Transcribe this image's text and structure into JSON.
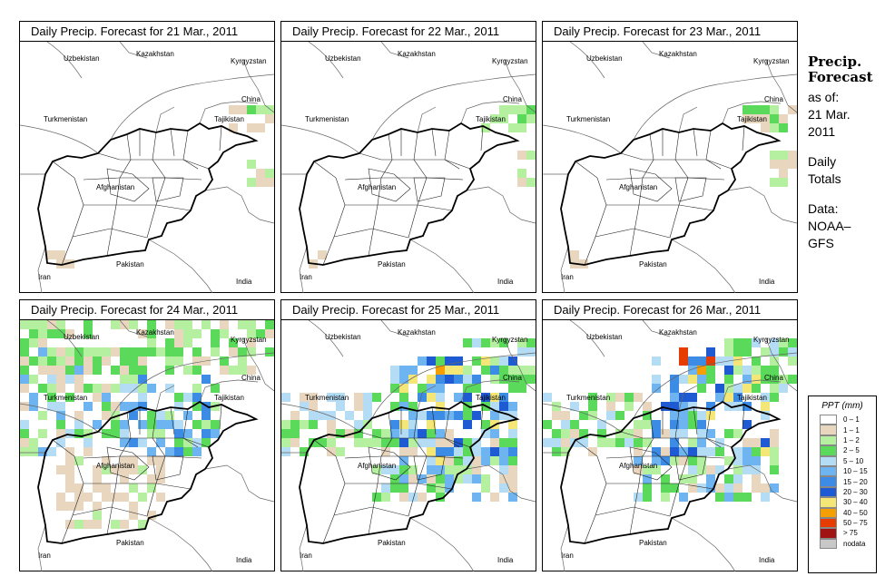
{
  "panels": [
    {
      "title": "Daily Precip. Forecast for  21 Mar., 2011",
      "date": "21 Mar., 2011",
      "precip_level": "none"
    },
    {
      "title": "Daily Precip. Forecast for  22 Mar., 2011",
      "date": "22 Mar., 2011",
      "precip_level": "none"
    },
    {
      "title": "Daily Precip. Forecast for  23 Mar., 2011",
      "date": "23 Mar., 2011",
      "precip_level": "none"
    },
    {
      "title": "Daily Precip. Forecast for  24 Mar., 2011",
      "date": "24 Mar., 2011",
      "precip_level": "moderate"
    },
    {
      "title": "Daily Precip. Forecast for  25 Mar., 2011",
      "date": "25 Mar., 2011",
      "precip_level": "heavy"
    },
    {
      "title": "Daily Precip. Forecast for  26 Mar., 2011",
      "date": "26 Mar., 2011",
      "precip_level": "heavy"
    }
  ],
  "country_labels": [
    "Uzbekistan",
    "Kazakhstan",
    "Kyrgyzstan",
    "China",
    "Turkmenistan",
    "Tajikistan",
    "Afghanistan",
    "Pakistan",
    "Iran",
    "India"
  ],
  "side": {
    "title_line1": "Precip.",
    "title_line2": "Forecast",
    "asof_line1": "as of:",
    "asof_line2": "21 Mar.",
    "asof_line3": "2011",
    "totals_line1": "Daily",
    "totals_line2": "Totals",
    "data_line1": "Data:",
    "data_line2": "NOAA–",
    "data_line3": "GFS"
  },
  "legend": {
    "title": "PPT (mm)",
    "items": [
      {
        "label": "0 – 1",
        "color": "#ffffff"
      },
      {
        "label": "1 – 1",
        "color": "#e8d7be"
      },
      {
        "label": "1 – 2",
        "color": "#b4f0a0"
      },
      {
        "label": "2 – 5",
        "color": "#5ad95a"
      },
      {
        "label": "5 – 10",
        "color": "#b4dcf5"
      },
      {
        "label": "10 – 15",
        "color": "#6eb4f0"
      },
      {
        "label": "15 – 20",
        "color": "#3c8ce6"
      },
      {
        "label": "20 – 30",
        "color": "#1e5ad2"
      },
      {
        "label": "30 – 40",
        "color": "#f5e678"
      },
      {
        "label": "40 – 50",
        "color": "#f5a000"
      },
      {
        "label": "50 – 75",
        "color": "#e63c00"
      },
      {
        "label": "> 75",
        "color": "#a01414"
      },
      {
        "label": "nodata",
        "color": "#c8c8c8"
      }
    ]
  }
}
